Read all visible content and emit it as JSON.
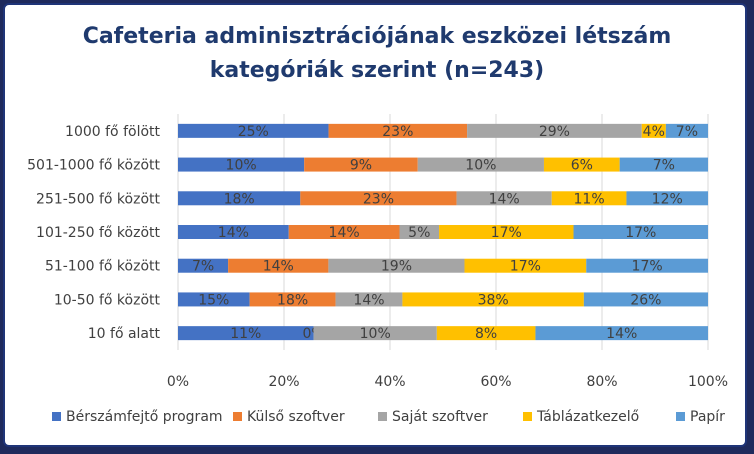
{
  "chart_data": {
    "type": "bar",
    "orientation": "horizontal",
    "stacked": "percent",
    "title_line1": "Cafeteria adminisztrációjának eszközei létszám",
    "title_line2": "kategóriák szerint (n=243)",
    "categories": [
      "1000 fő fölött",
      "501-1000 fő között",
      "251-500 fő között",
      "101-250 fő között",
      "51-100 fő között",
      "10-50 fő között",
      "10 fő alatt"
    ],
    "series": [
      {
        "name": "Bérszámfejtő program",
        "color": "#4472c4",
        "values": [
          25,
          10,
          18,
          14,
          7,
          15,
          11
        ],
        "labels": [
          "25%",
          "10%",
          "18%",
          "14%",
          "7%",
          "15%",
          "11%"
        ]
      },
      {
        "name": "Külső szoftver",
        "color": "#ed7d31",
        "values": [
          23,
          9,
          23,
          14,
          14,
          18,
          0
        ],
        "labels": [
          "23%",
          "9%",
          "23%",
          "14%",
          "14%",
          "18%",
          "0%"
        ]
      },
      {
        "name": "Saját szoftver",
        "color": "#a5a5a5",
        "values": [
          29,
          10,
          14,
          5,
          19,
          14,
          10
        ],
        "labels": [
          "29%",
          "10%",
          "14%",
          "5%",
          "19%",
          "14%",
          "10%"
        ]
      },
      {
        "name": "Táblázatkezelő",
        "color": "#ffc000",
        "values": [
          4,
          6,
          11,
          17,
          17,
          38,
          8
        ],
        "labels": [
          "4%",
          "6%",
          "11%",
          "17%",
          "17%",
          "38%",
          "8%"
        ]
      },
      {
        "name": "Papír",
        "color": "#5b9bd5",
        "values": [
          7,
          7,
          12,
          17,
          17,
          26,
          14
        ],
        "labels": [
          "7%",
          "7%",
          "12%",
          "17%",
          "17%",
          "26%",
          "14%"
        ]
      }
    ],
    "xlim": [
      0,
      100
    ],
    "xticks": [
      "0%",
      "20%",
      "40%",
      "60%",
      "80%",
      "100%"
    ],
    "grid": true,
    "legend_position": "bottom"
  }
}
